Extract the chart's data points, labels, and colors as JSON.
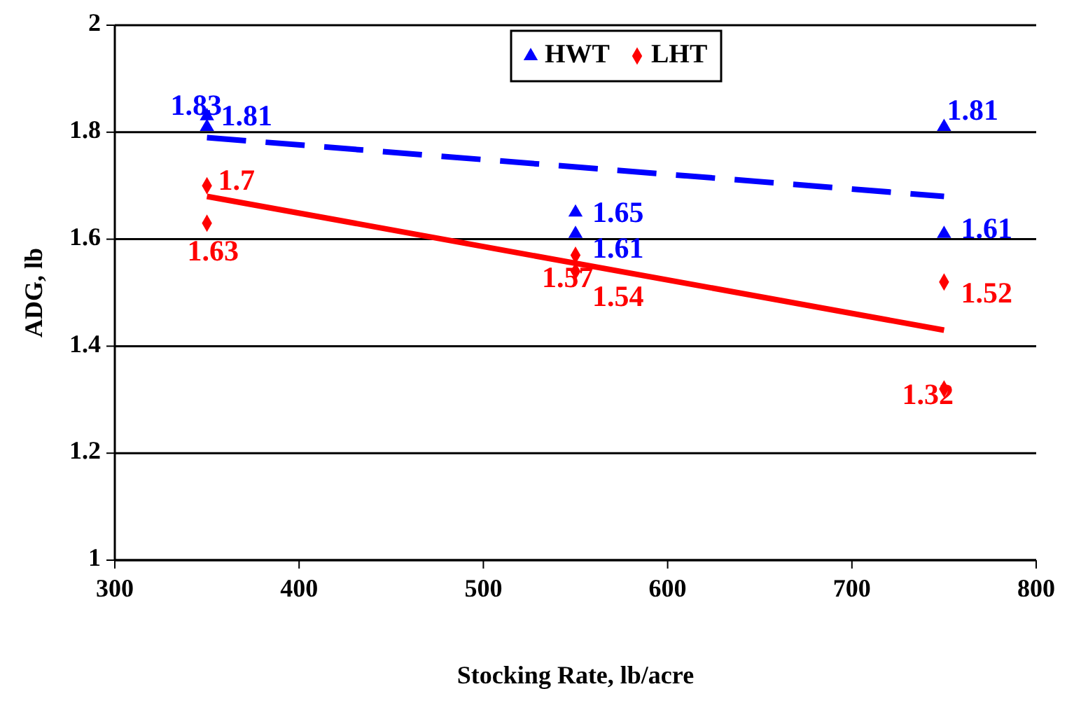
{
  "chart_data": {
    "type": "scatter",
    "xlabel": "Stocking Rate, lb/acre",
    "ylabel": "ADG, lb",
    "xlim": [
      300,
      800
    ],
    "xticks": [
      300,
      400,
      500,
      600,
      700,
      800
    ],
    "ylim": [
      1,
      2
    ],
    "yticks": [
      1,
      1.2,
      1.4,
      1.6,
      1.8,
      2
    ],
    "grid": "y",
    "legend": "top",
    "series": [
      {
        "name": "HWT",
        "color": "#0000ff",
        "marker": "triangle",
        "x": [
          350,
          350,
          550,
          550,
          750,
          750
        ],
        "values": [
          1.83,
          1.81,
          1.65,
          1.61,
          1.81,
          1.61
        ],
        "value_labels": [
          "1.83",
          "1.81",
          "1.65",
          "1.61",
          "1.81",
          "1.61"
        ]
      },
      {
        "name": "LHT",
        "color": "#ff0000",
        "marker": "diamond",
        "x": [
          350,
          350,
          550,
          550,
          750,
          750
        ],
        "values": [
          1.7,
          1.63,
          1.57,
          1.54,
          1.52,
          1.32
        ],
        "value_labels": [
          "1.7",
          "1.63",
          "1.57",
          "1.54",
          "1.52",
          "1.32"
        ]
      },
      {
        "type": "line",
        "color": "#0000ff",
        "line_style": "dashed",
        "x": [
          350,
          750
        ],
        "values": [
          1.79,
          1.68
        ]
      },
      {
        "type": "line",
        "color": "#ff0000",
        "line_style": "solid",
        "x": [
          350,
          750
        ],
        "values": [
          1.68,
          1.43
        ]
      }
    ]
  }
}
